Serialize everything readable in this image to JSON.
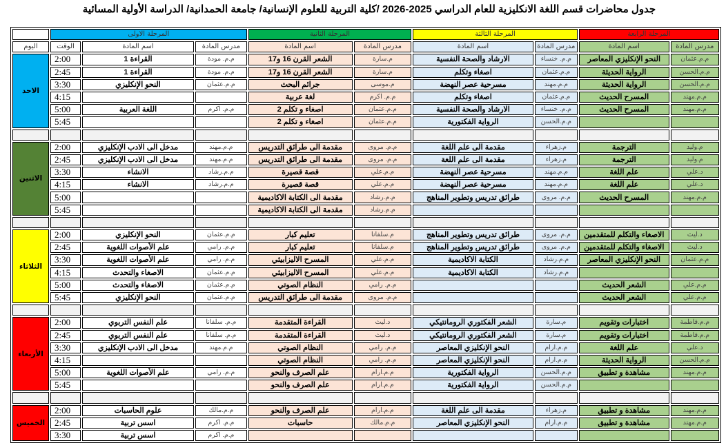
{
  "title": "جدول محاضرات قسم اللغة الانكليزية للعام الدراسي 2025-2026  /كلية التربية للعلوم الإنسانية/ جامعة الحمدانية/ الدراسة الأولية المسائية",
  "colors": {
    "stage1": "#00b0f0",
    "stage2": "#00b050",
    "stage3": "#ffff00",
    "stage4": "#ff0000",
    "stage2_cells": "#fce4d6",
    "stage3_cells": "#ddebf7",
    "stage4_cells": "#a9d08e",
    "separator": "#f2f2f2"
  },
  "header": {
    "stages": [
      "المرحلة الاولى",
      "المرحلة الثانية",
      "المرحلة الثالثة",
      "المرحلة الرابعة"
    ],
    "day_label": "اليوم",
    "time_label": "الوقت",
    "subject_label": "اسم المادة",
    "teacher_label": "مدرس المادة"
  },
  "days": [
    {
      "name": "الاحد",
      "color": "#00b0f0",
      "rows": [
        {
          "time": "2:00",
          "s1": [
            "القراءة 1",
            "م.م. مودة"
          ],
          "s2": [
            "الشعر القرن 16 و17",
            "م.سارة"
          ],
          "s3": [
            "الارشاد والصحة النفسية",
            "م.م. خنساء"
          ],
          "s4": [
            "النحو الإنكليزي المعاصر",
            "م.م.عثمان"
          ]
        },
        {
          "time": "2:45",
          "s1": [
            "القراءة 1",
            "م.م. مودة"
          ],
          "s2": [
            "الشعر القرن 16 و17",
            "م.سارة"
          ],
          "s3": [
            "اصغاء وتكلم",
            "م.م.عثمان"
          ],
          "s4": [
            "الرواية الحديثة",
            "م.م.الحسن"
          ]
        },
        {
          "time": "3:30",
          "s1": [
            "النحو الإنكليزي",
            "م.م.عثمان"
          ],
          "s2": [
            "جرائم البحث",
            "م.موسى"
          ],
          "s3": [
            "مسرحية عصر النهضة",
            "م.م.مهند"
          ],
          "s4": [
            "الرواية الحديثة",
            "م.م.الحسن"
          ]
        },
        {
          "time": "4:15",
          "s1": [
            "",
            ""
          ],
          "s2": [
            "لغة عربية",
            "م.م. اكرم"
          ],
          "s3": [
            "اصغاء وتكلم",
            "م.م.عثمان"
          ],
          "s4": [
            "المسرح الحديث",
            "م.م.مهند"
          ]
        },
        {
          "time": "5:00",
          "s1": [
            "اللغة العربية",
            "م.م. اكرم"
          ],
          "s2": [
            "اصغاء و تكلم 2",
            "م.م.عثمان"
          ],
          "s3": [
            "الارشاد والصحة النفسية",
            "م.م. خنساء"
          ],
          "s4": [
            "المسرح الحديث",
            "م.م.مهند"
          ]
        },
        {
          "time": "5:45",
          "s1": [
            "",
            ""
          ],
          "s2": [
            "اصغاء و تكلم 2",
            "م.م.عثمان"
          ],
          "s3": [
            "الرواية الفكتورية",
            "م.م.الحسن"
          ],
          "s4": [
            "",
            ""
          ]
        }
      ]
    },
    {
      "name": "الاثنين",
      "color": "#548235",
      "rows": [
        {
          "time": "2:00",
          "s1": [
            "مدخل الى الادب الإنكليزي",
            "م.م.مهند"
          ],
          "s2": [
            "مقدمة الى طرائق التدريس",
            "م.م. مروى"
          ],
          "s3": [
            "مقدمة الى علم اللغة",
            "م.زهراء"
          ],
          "s4": [
            "الترجمة",
            "م.وليد"
          ]
        },
        {
          "time": "2:45",
          "s1": [
            "مدخل الى الادب الإنكليزي",
            "م.م.مهند"
          ],
          "s2": [
            "مقدمة الى طرائق التدريس",
            "م.م. مروى"
          ],
          "s3": [
            "مقدمة الى علم اللغة",
            "م.زهراء"
          ],
          "s4": [
            "الترجمة",
            "م.وليد"
          ]
        },
        {
          "time": "3:30",
          "s1": [
            "الانشاء",
            "م.م.رشاد"
          ],
          "s2": [
            "قصة قصيرة",
            "م.م.علي"
          ],
          "s3": [
            "مسرحية عصر النهضة",
            "م.م.مهند"
          ],
          "s4": [
            "علم اللغة",
            "د.علي"
          ]
        },
        {
          "time": "4:15",
          "s1": [
            "الانشاء",
            "م.م.رشاد"
          ],
          "s2": [
            "قصة قصيرة",
            "م.م.علي"
          ],
          "s3": [
            "مسرحية عصر النهضة",
            "م.م.مهند"
          ],
          "s4": [
            "علم اللغة",
            "د.علي"
          ]
        },
        {
          "time": "5:00",
          "s1": [
            "",
            ""
          ],
          "s2": [
            "مقدمة الى الكتابة الاكاديمية",
            "م.م.رشاد"
          ],
          "s3": [
            "طرائق تدريس وتطوير المناهج",
            "م.م. مروى"
          ],
          "s4": [
            "المسرح الحديث",
            "م.م.مهند"
          ]
        },
        {
          "time": "5:45",
          "s1": [
            "",
            ""
          ],
          "s2": [
            "مقدمة الى الكتابة الاكاديمية",
            "م.م.رشاد"
          ],
          "s3": [
            "",
            ""
          ],
          "s4": [
            "",
            ""
          ]
        }
      ]
    },
    {
      "name": "الثلاثاء",
      "color": "#ffff00",
      "rows": [
        {
          "time": "2:00",
          "s1": [
            "النحو الإنكليزي",
            "م.م.عثمان"
          ],
          "s2": [
            "تعليم كبار",
            "م.سلفانا"
          ],
          "s3": [
            "طرائق تدريس وتطوير المناهج",
            "م.م. مروى"
          ],
          "s4": [
            "الاصغاء والتكلم للمتقدمين",
            "د.ليث"
          ]
        },
        {
          "time": "2:45",
          "s1": [
            "علم الأصوات اللغوية",
            "م.م. رامي"
          ],
          "s2": [
            "تعليم كبار",
            "م.سلفانا"
          ],
          "s3": [
            "طرائق تدريس وتطوير المناهج",
            "م.م. مروى"
          ],
          "s4": [
            "الاصغاء والتكلم للمتقدمين",
            "د.ليث"
          ]
        },
        {
          "time": "3:30",
          "s1": [
            "علم الأصوات اللغوية",
            "م.م. رامي"
          ],
          "s2": [
            "المسرح الاليزابيثي",
            "م.م.علي"
          ],
          "s3": [
            "الكتابة الاكاديمية",
            "م.م.رشاد"
          ],
          "s4": [
            "النحو الإنكليزي المعاصر",
            "م.م.عثمان"
          ]
        },
        {
          "time": "4:15",
          "s1": [
            "الاصغاء والتحدث",
            "م.م.عثمان"
          ],
          "s2": [
            "المسرح الاليزابيثي",
            "م.م.علي"
          ],
          "s3": [
            "الكتابة الاكاديمية",
            "م.م.رشاد"
          ],
          "s4": [
            "",
            ""
          ]
        },
        {
          "time": "5:00",
          "s1": [
            "الاصغاء والتحدث",
            "م.م.عثمان"
          ],
          "s2": [
            "النظام الصوتي",
            "م.م. رامي"
          ],
          "s3": [
            "",
            ""
          ],
          "s4": [
            "الشعر الحديث",
            "م.م.علي"
          ]
        },
        {
          "time": "5:45",
          "s1": [
            "النحو الإنكليزي",
            "م.م.عثمان"
          ],
          "s2": [
            "مقدمة الى طرائق التدريس",
            "م.م. مروى"
          ],
          "s3": [
            "",
            ""
          ],
          "s4": [
            "الشعر الحديث",
            "م.م.علي"
          ]
        }
      ]
    },
    {
      "name": "الأربعاء",
      "color": "#ff0000",
      "rows": [
        {
          "time": "2:00",
          "s1": [
            "علم النفس التربوي",
            "م.م. سلفانا"
          ],
          "s2": [
            "القراءة المتقدمة",
            "د.ليث"
          ],
          "s3": [
            "الشعر الفكتوري الرومانتيكي",
            "م.سارة"
          ],
          "s4": [
            "اختبارات وتقويم",
            "م.م.فاطمة"
          ]
        },
        {
          "time": "2:45",
          "s1": [
            "علم النفس التربوي",
            "م.م. سلفانا"
          ],
          "s2": [
            "القراءة المتقدمة",
            "د.ليث"
          ],
          "s3": [
            "الشعر الفكتوري الرومانتيكي",
            "م.سارة"
          ],
          "s4": [
            "اختبارات وتقويم",
            "م.م.فاطمة"
          ]
        },
        {
          "time": "3:30",
          "s1": [
            "مدخل الى الادب الإنكليزي",
            "م.م.مهند"
          ],
          "s2": [
            "النظام الصوتي",
            "م.م. رامي"
          ],
          "s3": [
            "النحو الإنكليزي المعاصر",
            "م.م.ارام"
          ],
          "s4": [
            "علم اللغة",
            "د.علي"
          ]
        },
        {
          "time": "4:15",
          "s1": [
            "",
            ""
          ],
          "s2": [
            "النظام الصوتي",
            "م.م. رامي"
          ],
          "s3": [
            "النحو الإنكليزي المعاصر",
            "م.م.ارام"
          ],
          "s4": [
            "الرواية الحديثة",
            "م.م.الحسن"
          ]
        },
        {
          "time": "5:00",
          "s1": [
            "علم الأصوات اللغوية",
            "م.م. رامي"
          ],
          "s2": [
            "علم الصرف والنحو",
            "م.م.ارام"
          ],
          "s3": [
            "الرواية الفكتورية",
            "م.م.الحسن"
          ],
          "s4": [
            "مشاهدة و تطبيق",
            "م.م.مهند"
          ]
        },
        {
          "time": "5:45",
          "s1": [
            "",
            ""
          ],
          "s2": [
            "علم الصرف والنحو",
            "م.م.ارام"
          ],
          "s3": [
            "الرواية الفكتورية",
            "م.م.الحسن"
          ],
          "s4": [
            "",
            ""
          ]
        }
      ]
    },
    {
      "name": "الخميس",
      "color": "#ff0000",
      "rows": [
        {
          "time": "2:00",
          "s1": [
            "علوم الحاسبات",
            "م.م.مالك"
          ],
          "s2": [
            "علم الصرف والنحو",
            "م.م.ارام"
          ],
          "s3": [
            "مقدمة الى علم اللغة",
            "م.زهراء"
          ],
          "s4": [
            "مشاهدة و تطبيق",
            "م.م.مهند"
          ]
        },
        {
          "time": "2:45",
          "s1": [
            "اسس تربية",
            "م.م. اكرم"
          ],
          "s2": [
            "حاسبات",
            "م.م.مالك"
          ],
          "s3": [
            "النحو الإنكليزي المعاصر",
            "م.م.ارام"
          ],
          "s4": [
            "مشاهدة و تطبيق",
            "م.م.مهند"
          ]
        },
        {
          "time": "3:30",
          "s1": [
            "اسس تربية",
            "م.م. اكرم"
          ],
          "s2": [
            "",
            ""
          ],
          "s3": [
            "",
            ""
          ],
          "s4": [
            "",
            ""
          ]
        }
      ]
    }
  ]
}
